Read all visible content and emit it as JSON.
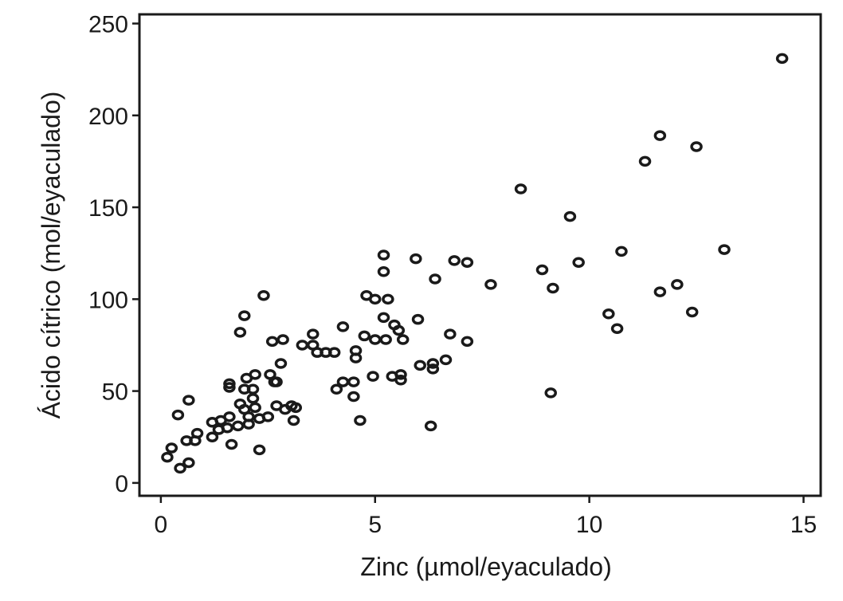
{
  "chart_data": {
    "type": "scatter",
    "xlabel": "Zinc (µmol/eyaculado)",
    "ylabel": "Ácido cítrico (mol/eyaculado)",
    "xlim": [
      -0.5,
      15.4
    ],
    "ylim": [
      -7,
      255
    ],
    "x_ticks": [
      0,
      5,
      10,
      15
    ],
    "y_ticks": [
      0,
      50,
      100,
      150,
      200,
      250
    ],
    "grid": false,
    "points": [
      {
        "x": 0.15,
        "y": 14
      },
      {
        "x": 0.25,
        "y": 19
      },
      {
        "x": 0.45,
        "y": 8
      },
      {
        "x": 0.65,
        "y": 11
      },
      {
        "x": 0.4,
        "y": 37
      },
      {
        "x": 0.6,
        "y": 23
      },
      {
        "x": 0.8,
        "y": 23
      },
      {
        "x": 0.85,
        "y": 27
      },
      {
        "x": 0.65,
        "y": 45
      },
      {
        "x": 1.2,
        "y": 33
      },
      {
        "x": 1.2,
        "y": 25
      },
      {
        "x": 1.35,
        "y": 29
      },
      {
        "x": 1.4,
        "y": 34
      },
      {
        "x": 1.55,
        "y": 30
      },
      {
        "x": 1.6,
        "y": 36
      },
      {
        "x": 1.65,
        "y": 21
      },
      {
        "x": 1.8,
        "y": 31
      },
      {
        "x": 1.85,
        "y": 43
      },
      {
        "x": 1.95,
        "y": 40
      },
      {
        "x": 2.05,
        "y": 36
      },
      {
        "x": 2.05,
        "y": 32
      },
      {
        "x": 2.15,
        "y": 46
      },
      {
        "x": 2.2,
        "y": 41
      },
      {
        "x": 2.3,
        "y": 35
      },
      {
        "x": 1.6,
        "y": 52
      },
      {
        "x": 1.6,
        "y": 54
      },
      {
        "x": 1.95,
        "y": 51
      },
      {
        "x": 2.0,
        "y": 57
      },
      {
        "x": 2.15,
        "y": 51
      },
      {
        "x": 2.2,
        "y": 59
      },
      {
        "x": 2.3,
        "y": 18
      },
      {
        "x": 2.5,
        "y": 36
      },
      {
        "x": 2.55,
        "y": 59
      },
      {
        "x": 2.65,
        "y": 55
      },
      {
        "x": 2.7,
        "y": 55
      },
      {
        "x": 2.7,
        "y": 42
      },
      {
        "x": 2.9,
        "y": 40
      },
      {
        "x": 3.05,
        "y": 42
      },
      {
        "x": 3.1,
        "y": 34
      },
      {
        "x": 3.15,
        "y": 41
      },
      {
        "x": 2.8,
        "y": 65
      },
      {
        "x": 1.85,
        "y": 82
      },
      {
        "x": 1.95,
        "y": 91
      },
      {
        "x": 2.4,
        "y": 102
      },
      {
        "x": 2.6,
        "y": 77
      },
      {
        "x": 2.85,
        "y": 78
      },
      {
        "x": 3.3,
        "y": 75
      },
      {
        "x": 3.55,
        "y": 75
      },
      {
        "x": 3.55,
        "y": 81
      },
      {
        "x": 3.65,
        "y": 71
      },
      {
        "x": 3.85,
        "y": 71
      },
      {
        "x": 4.05,
        "y": 71
      },
      {
        "x": 4.1,
        "y": 51
      },
      {
        "x": 4.25,
        "y": 55
      },
      {
        "x": 4.5,
        "y": 55
      },
      {
        "x": 4.5,
        "y": 47
      },
      {
        "x": 4.55,
        "y": 72
      },
      {
        "x": 4.55,
        "y": 68
      },
      {
        "x": 4.65,
        "y": 34
      },
      {
        "x": 4.25,
        "y": 85
      },
      {
        "x": 4.75,
        "y": 80
      },
      {
        "x": 4.8,
        "y": 102
      },
      {
        "x": 4.95,
        "y": 58
      },
      {
        "x": 5.0,
        "y": 100
      },
      {
        "x": 5.0,
        "y": 78
      },
      {
        "x": 5.2,
        "y": 90
      },
      {
        "x": 5.25,
        "y": 78
      },
      {
        "x": 5.3,
        "y": 100
      },
      {
        "x": 5.4,
        "y": 58
      },
      {
        "x": 5.45,
        "y": 86
      },
      {
        "x": 5.55,
        "y": 83
      },
      {
        "x": 5.6,
        "y": 59
      },
      {
        "x": 5.6,
        "y": 56
      },
      {
        "x": 5.65,
        "y": 78
      },
      {
        "x": 5.2,
        "y": 115
      },
      {
        "x": 5.2,
        "y": 124
      },
      {
        "x": 5.95,
        "y": 122
      },
      {
        "x": 6.0,
        "y": 89
      },
      {
        "x": 6.05,
        "y": 64
      },
      {
        "x": 6.3,
        "y": 31
      },
      {
        "x": 6.35,
        "y": 65
      },
      {
        "x": 6.35,
        "y": 62
      },
      {
        "x": 6.4,
        "y": 111
      },
      {
        "x": 6.65,
        "y": 67
      },
      {
        "x": 6.75,
        "y": 81
      },
      {
        "x": 6.85,
        "y": 121
      },
      {
        "x": 7.15,
        "y": 77
      },
      {
        "x": 7.15,
        "y": 120
      },
      {
        "x": 7.7,
        "y": 108
      },
      {
        "x": 8.4,
        "y": 160
      },
      {
        "x": 8.9,
        "y": 116
      },
      {
        "x": 9.1,
        "y": 49
      },
      {
        "x": 9.15,
        "y": 106
      },
      {
        "x": 9.55,
        "y": 145
      },
      {
        "x": 9.75,
        "y": 120
      },
      {
        "x": 10.45,
        "y": 92
      },
      {
        "x": 10.65,
        "y": 84
      },
      {
        "x": 10.75,
        "y": 126
      },
      {
        "x": 11.3,
        "y": 175
      },
      {
        "x": 11.65,
        "y": 104
      },
      {
        "x": 11.65,
        "y": 189
      },
      {
        "x": 12.05,
        "y": 108
      },
      {
        "x": 12.4,
        "y": 93
      },
      {
        "x": 12.5,
        "y": 183
      },
      {
        "x": 13.15,
        "y": 127
      },
      {
        "x": 14.5,
        "y": 231
      }
    ]
  }
}
